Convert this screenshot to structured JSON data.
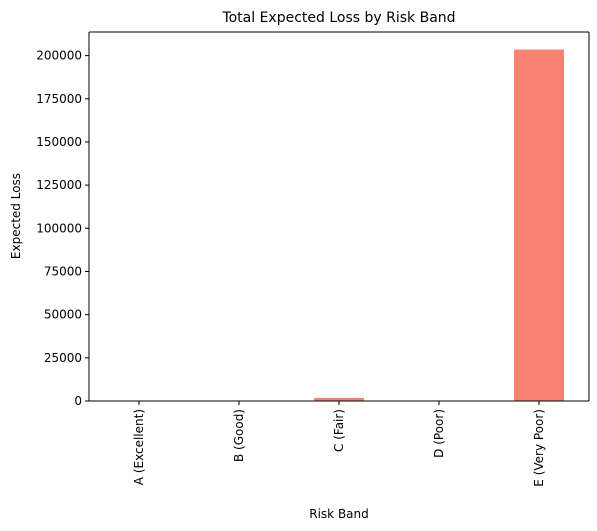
{
  "chart_data": {
    "type": "bar",
    "title": "Total Expected Loss by Risk Band",
    "xlabel": "Risk Band",
    "ylabel": "Expected Loss",
    "categories": [
      "A (Excellent)",
      "B (Good)",
      "C (Fair)",
      "D (Poor)",
      "E (Very Poor)"
    ],
    "values": [
      0,
      0,
      1800,
      0,
      203500
    ],
    "ylim": [
      0,
      213675
    ],
    "yticks": [
      0,
      25000,
      50000,
      75000,
      100000,
      125000,
      150000,
      175000,
      200000
    ],
    "bar_color": "#fa8072",
    "grid": false,
    "legend": "none"
  }
}
